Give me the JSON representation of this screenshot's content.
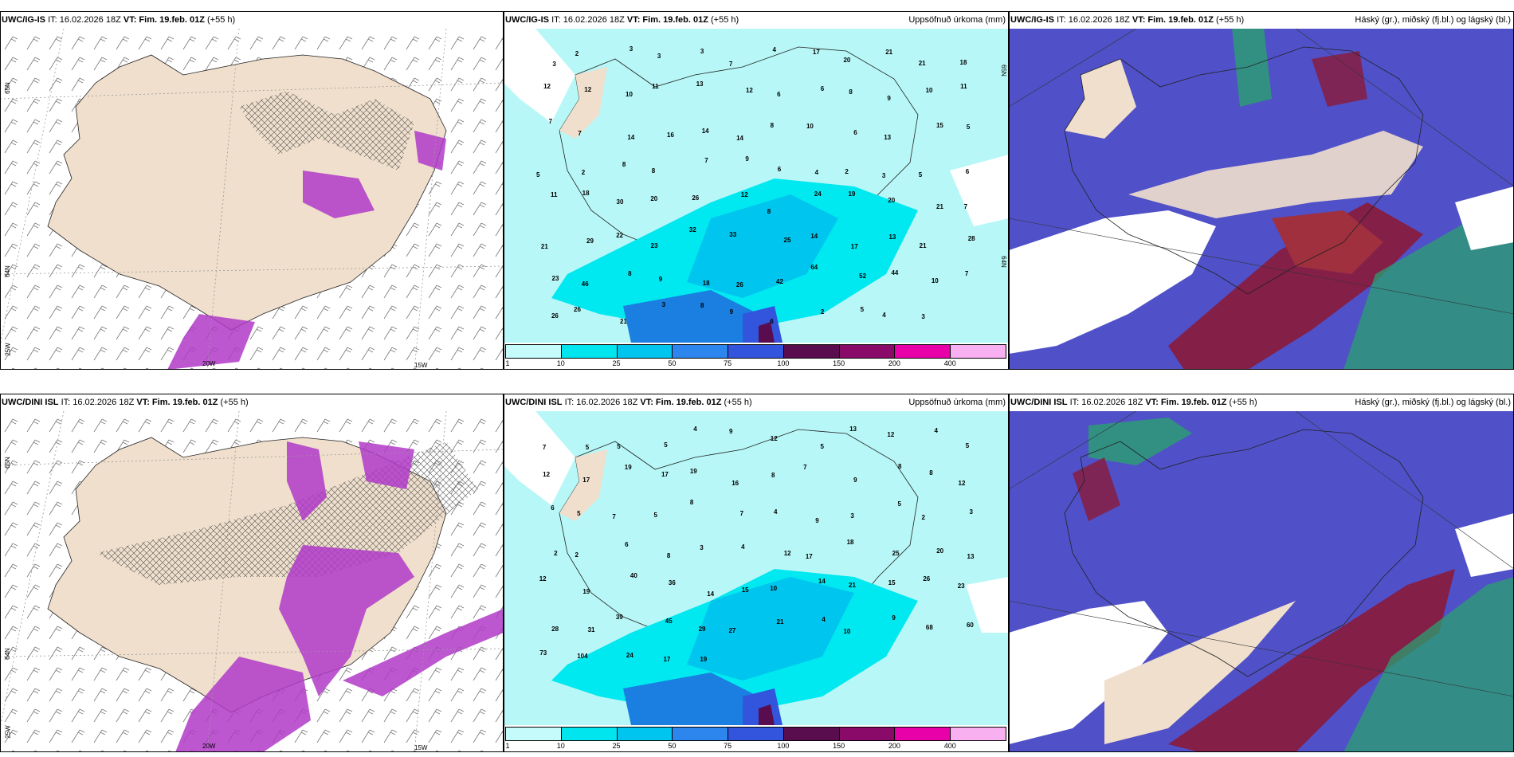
{
  "panels": [
    {
      "id": "p1",
      "model": "UWC/IG-IS",
      "it": "IT: 16.02.2026 18Z",
      "vt_label": "VT: Fim. 19.feb. 01Z",
      "lead": "(+55 h)",
      "right_title": "",
      "axis_labels": [
        "65N",
        "64N",
        "25W",
        "20W",
        "15W"
      ]
    },
    {
      "id": "p2",
      "model": "UWC/IG-IS",
      "it": "IT: 16.02.2026 18Z",
      "vt_label": "VT: Fim. 19.feb. 01Z",
      "lead": "(+55 h)",
      "right_title": "Uppsöfnuð úrkoma (mm)",
      "axis_labels": [
        "65N",
        "64N"
      ],
      "values": [
        "3",
        "2",
        "3",
        "3",
        "3",
        "7",
        "4",
        "17",
        "20",
        "21",
        "21",
        "18",
        "12",
        "12",
        "10",
        "11",
        "13",
        "12",
        "6",
        "6",
        "8",
        "9",
        "10",
        "11",
        "7",
        "7",
        "14",
        "16",
        "14",
        "14",
        "8",
        "10",
        "6",
        "13",
        "15",
        "5",
        "5",
        "2",
        "8",
        "8",
        "7",
        "9",
        "6",
        "4",
        "2",
        "3",
        "5",
        "6",
        "11",
        "18",
        "30",
        "20",
        "26",
        "12",
        "8",
        "24",
        "19",
        "20",
        "21",
        "7",
        "21",
        "29",
        "22",
        "23",
        "32",
        "33",
        "25",
        "14",
        "17",
        "13",
        "21",
        "28",
        "23",
        "46",
        "8",
        "9",
        "18",
        "26",
        "42",
        "64",
        "52",
        "44",
        "10",
        "7",
        "26",
        "26",
        "21",
        "3",
        "8",
        "9",
        "6",
        "2",
        "5",
        "4",
        "3"
      ]
    },
    {
      "id": "p3",
      "model": "UWC/IG-IS",
      "it": "IT: 16.02.2026 18Z",
      "vt_label": "VT: Fim. 19.feb. 01Z",
      "lead": "(+55 h)",
      "right_title": "Háský (gr.), miðský (fj.bl.) og lágský (bl.)"
    },
    {
      "id": "p4",
      "model": "UWC/DINI ISL",
      "it": "IT: 16.02.2026 18Z",
      "vt_label": "VT: Fim. 19.feb. 01Z",
      "lead": "(+55 h)",
      "right_title": "",
      "axis_labels": [
        "65N",
        "64N",
        "25W",
        "20W",
        "15W"
      ]
    },
    {
      "id": "p5",
      "model": "UWC/DINI ISL",
      "it": "IT: 16.02.2026 18Z",
      "vt_label": "VT: Fim. 19.feb. 01Z",
      "lead": "(+55 h)",
      "right_title": "Uppsöfnuð úrkoma (mm)",
      "axis_labels": [
        "65N",
        "64N"
      ],
      "values": [
        "7",
        "5",
        "5",
        "5",
        "4",
        "9",
        "12",
        "5",
        "13",
        "12",
        "4",
        "5",
        "12",
        "17",
        "19",
        "17",
        "19",
        "16",
        "8",
        "7",
        "9",
        "8",
        "8",
        "12",
        "6",
        "5",
        "7",
        "5",
        "8",
        "7",
        "4",
        "9",
        "3",
        "5",
        "2",
        "3",
        "2",
        "2",
        "6",
        "8",
        "3",
        "4",
        "12",
        "17",
        "18",
        "25",
        "20",
        "13",
        "12",
        "19",
        "40",
        "36",
        "14",
        "15",
        "10",
        "14",
        "21",
        "15",
        "26",
        "23",
        "28",
        "31",
        "39",
        "45",
        "29",
        "27",
        "21",
        "4",
        "10",
        "9",
        "68",
        "60",
        "73",
        "104",
        "24",
        "17",
        "19"
      ]
    },
    {
      "id": "p6",
      "model": "UWC/DINI ISL",
      "it": "IT: 16.02.2026 18Z",
      "vt_label": "VT: Fim. 19.feb. 01Z",
      "lead": "(+55 h)",
      "right_title": "Háský (gr.), miðský (fj.bl.) og lágský (bl.)"
    }
  ],
  "colorbar": {
    "ticks": [
      "1",
      "10",
      "25",
      "50",
      "75",
      "100",
      "150",
      "200",
      "400"
    ],
    "colors": [
      "#c6fbfb",
      "#00e5ee",
      "#00c5ee",
      "#2d86ee",
      "#3355dd",
      "#5a0d4e",
      "#8a0a6a",
      "#e800a8",
      "#f8b0f0"
    ]
  },
  "colors": {
    "land": "#efdfcc",
    "precip_light": "#b8f7f7",
    "precip_mid": "#00e8f0",
    "precip_heavy": "#1a7fe0",
    "purple_contour": "#b03ac8",
    "high_cloud": "#5050c8",
    "mid_cloud": "#8a1a3a",
    "low_cloud": "#2aa070"
  }
}
